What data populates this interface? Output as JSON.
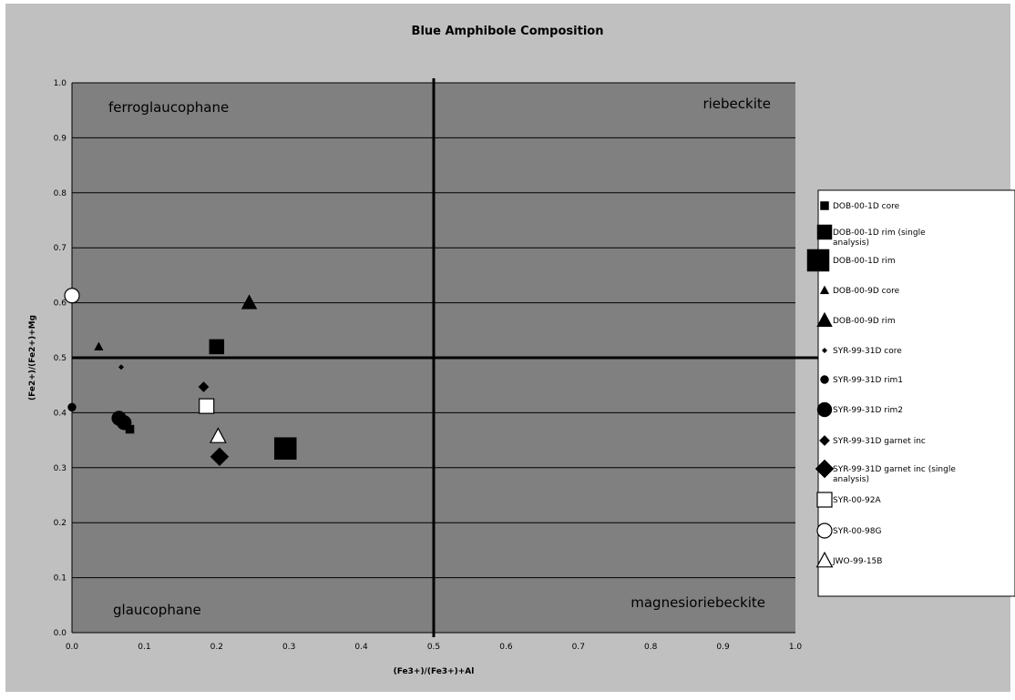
{
  "chart_data": {
    "type": "scatter",
    "title": "Blue Amphibole Composition",
    "xlabel": "(Fe3+)/(Fe3+)+Al",
    "ylabel": "(Fe2+)/(Fe2+)+Mg",
    "xlim": [
      0,
      1
    ],
    "ylim": [
      0,
      1
    ],
    "x_ticks": [
      "0.0",
      "0.1",
      "0.2",
      "0.3",
      "0.4",
      "0.5",
      "0.6",
      "0.7",
      "0.8",
      "0.9",
      "1.0"
    ],
    "y_ticks": [
      "0.0",
      "0.1",
      "0.2",
      "0.3",
      "0.4",
      "0.5",
      "0.6",
      "0.7",
      "0.8",
      "0.9",
      "1.0"
    ],
    "grid": "horizontal",
    "legend_position": "right",
    "divider_lines": {
      "x": 0.5,
      "y": 0.5
    },
    "field_labels": [
      {
        "text": "ferroglaucophane",
        "corner": "top-left"
      },
      {
        "text": "riebeckite",
        "corner": "top-right"
      },
      {
        "text": "glaucophane",
        "corner": "bottom-left"
      },
      {
        "text": "magnesioriebeckite",
        "corner": "bottom-right"
      }
    ],
    "series": [
      {
        "name": "DOB-00-1D core",
        "marker": "square-filled",
        "marker_size": "small",
        "points": [
          [
            0.08,
            0.37
          ]
        ]
      },
      {
        "name": "DOB-00-1D rim (single analysis)",
        "marker": "square-filled",
        "marker_size": "medium",
        "points": [
          [
            0.2,
            0.52
          ]
        ]
      },
      {
        "name": "DOB-00-1D rim",
        "marker": "square-filled",
        "marker_size": "large",
        "points": [
          [
            0.295,
            0.335
          ]
        ]
      },
      {
        "name": "DOB-00-9D core",
        "marker": "triangle-filled",
        "marker_size": "small",
        "points": [
          [
            0.037,
            0.52
          ]
        ]
      },
      {
        "name": "DOB-00-9D rim",
        "marker": "triangle-filled",
        "marker_size": "medium",
        "points": [
          [
            0.245,
            0.6
          ]
        ]
      },
      {
        "name": "SYR-99-31D core",
        "marker": "diamond-filled",
        "marker_size": "tiny",
        "points": [
          [
            0.068,
            0.483
          ]
        ]
      },
      {
        "name": "SYR-99-31D rim1",
        "marker": "circle-filled",
        "marker_size": "small",
        "points": [
          [
            0.0,
            0.41
          ]
        ]
      },
      {
        "name": "SYR-99-31D rim2",
        "marker": "circle-filled",
        "marker_size": "medium",
        "points": [
          [
            0.065,
            0.39
          ],
          [
            0.072,
            0.382
          ]
        ]
      },
      {
        "name": "SYR-99-31D garnet inc",
        "marker": "diamond-filled",
        "marker_size": "small",
        "points": [
          [
            0.182,
            0.447
          ]
        ]
      },
      {
        "name": "SYR-99-31D garnet inc (single analysis)",
        "marker": "diamond-filled",
        "marker_size": "medium",
        "points": [
          [
            0.204,
            0.32
          ]
        ]
      },
      {
        "name": "SYR-00-92A",
        "marker": "square-open",
        "marker_size": "medium",
        "points": [
          [
            0.186,
            0.412
          ]
        ]
      },
      {
        "name": "SYR-00-98G",
        "marker": "circle-open",
        "marker_size": "medium",
        "points": [
          [
            0.0,
            0.613
          ]
        ]
      },
      {
        "name": "JWO-99-15B",
        "marker": "triangle-open",
        "marker_size": "medium",
        "points": [
          [
            0.202,
            0.357
          ]
        ]
      }
    ]
  },
  "legend": {
    "labels": [
      "DOB-00-1D core",
      "DOB-00-1D rim (single",
      "analysis)",
      "DOB-00-1D rim",
      "DOB-00-9D core",
      "DOB-00-9D rim",
      "SYR-99-31D core",
      "SYR-99-31D rim1",
      "SYR-99-31D rim2",
      "SYR-99-31D garnet inc",
      "SYR-99-31D garnet inc (single",
      "analysis)",
      "SYR-00-92A",
      "SYR-00-98G",
      "JWO-99-15B"
    ]
  }
}
